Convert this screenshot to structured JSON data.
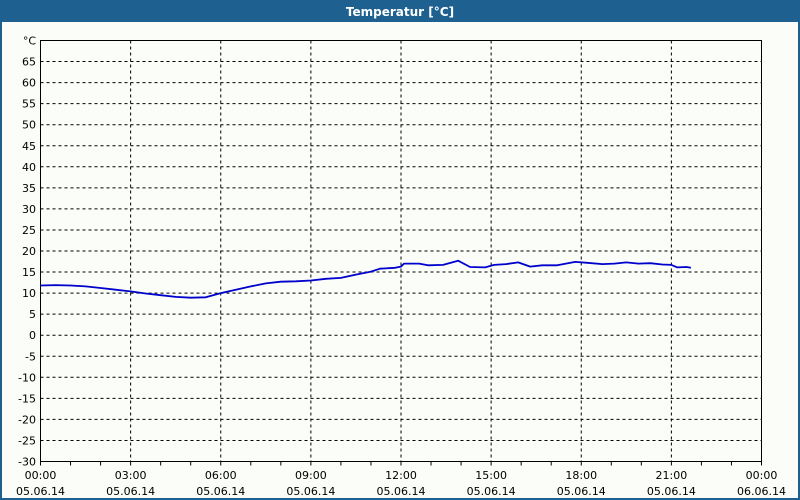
{
  "window": {
    "title": "Temperatur [°C]"
  },
  "colors": {
    "titlebar": "#1E6090",
    "window_border": "#1E6090",
    "background": "#FBFDF9",
    "frame": "#000000",
    "grid": "#000000",
    "text": "#000000",
    "line": "#0000CC"
  },
  "chart_data": {
    "type": "line",
    "title": "Temperatur [°C]",
    "grid": "dashed",
    "legend_position": "none",
    "y_axis": {
      "unit": "°C",
      "min": -30,
      "max": 70,
      "tick_step": 5,
      "tick_labels": [
        -30,
        -25,
        -20,
        -15,
        -10,
        -5,
        0,
        5,
        10,
        15,
        20,
        25,
        30,
        35,
        40,
        45,
        50,
        55,
        60,
        65
      ]
    },
    "x_axis": {
      "hours_span": 24,
      "minor_tick_every_hours": 1,
      "grid_every_hours": 3,
      "ticks": [
        {
          "hour": 0,
          "time": "00:00",
          "date": "05.06.14"
        },
        {
          "hour": 3,
          "time": "03:00",
          "date": "05.06.14"
        },
        {
          "hour": 6,
          "time": "06:00",
          "date": "05.06.14"
        },
        {
          "hour": 9,
          "time": "09:00",
          "date": "05.06.14"
        },
        {
          "hour": 12,
          "time": "12:00",
          "date": "05.06.14"
        },
        {
          "hour": 15,
          "time": "15:00",
          "date": "05.06.14"
        },
        {
          "hour": 18,
          "time": "18:00",
          "date": "05.06.14"
        },
        {
          "hour": 21,
          "time": "21:00",
          "date": "05.06.14"
        },
        {
          "hour": 24,
          "time": "00:00",
          "date": "06.06.14"
        }
      ]
    },
    "series": [
      {
        "name": "Temperatur",
        "color": "#0000CC",
        "points_hour_degC": [
          [
            0,
            11.8
          ],
          [
            0.5,
            11.9
          ],
          [
            1,
            11.8
          ],
          [
            1.5,
            11.6
          ],
          [
            2,
            11.2
          ],
          [
            2.5,
            10.8
          ],
          [
            3,
            10.4
          ],
          [
            3.5,
            9.9
          ],
          [
            4,
            9.5
          ],
          [
            4.5,
            9.1
          ],
          [
            5,
            8.9
          ],
          [
            5.5,
            9.0
          ],
          [
            6,
            10.0
          ],
          [
            6.5,
            10.8
          ],
          [
            7,
            11.6
          ],
          [
            7.5,
            12.3
          ],
          [
            8,
            12.7
          ],
          [
            8.5,
            12.8
          ],
          [
            9,
            13.0
          ],
          [
            9.5,
            13.4
          ],
          [
            10,
            13.6
          ],
          [
            10.5,
            14.4
          ],
          [
            11,
            15.1
          ],
          [
            11.3,
            15.8
          ],
          [
            11.8,
            16.0
          ],
          [
            12.0,
            16.3
          ],
          [
            12.1,
            17.0
          ],
          [
            12.6,
            17.0
          ],
          [
            12.9,
            16.6
          ],
          [
            13.4,
            16.7
          ],
          [
            13.9,
            17.7
          ],
          [
            14.3,
            16.2
          ],
          [
            14.8,
            16.1
          ],
          [
            15.1,
            16.7
          ],
          [
            15.5,
            16.9
          ],
          [
            15.9,
            17.3
          ],
          [
            16.3,
            16.3
          ],
          [
            16.7,
            16.6
          ],
          [
            17.2,
            16.6
          ],
          [
            17.8,
            17.4
          ],
          [
            18.2,
            17.2
          ],
          [
            18.7,
            16.9
          ],
          [
            19.1,
            17.0
          ],
          [
            19.5,
            17.3
          ],
          [
            19.9,
            17.0
          ],
          [
            20.3,
            17.1
          ],
          [
            20.7,
            16.8
          ],
          [
            21.0,
            16.7
          ],
          [
            21.2,
            16.1
          ],
          [
            21.5,
            16.2
          ],
          [
            21.65,
            16.0
          ]
        ]
      }
    ]
  }
}
